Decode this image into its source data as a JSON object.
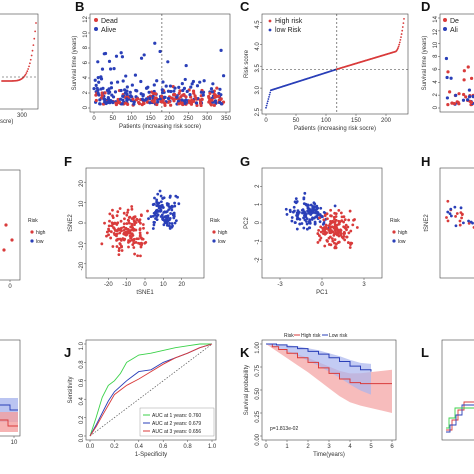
{
  "panels": {
    "A": {
      "label": "A",
      "xticks": [
        "300"
      ],
      "xlabel_partial": "scre)"
    },
    "B": {
      "label": "B",
      "ylabel": "Survival time (years)",
      "xlabel": "Patients (increasing risk socre)",
      "legend": [
        "Dead",
        "Alive"
      ],
      "xticks": [
        "0",
        "50",
        "100",
        "150",
        "200",
        "250",
        "300",
        "350"
      ],
      "yticks": [
        "0",
        "2",
        "4",
        "6",
        "8",
        "10",
        "12"
      ]
    },
    "C": {
      "label": "C",
      "ylabel": "Risk score",
      "xlabel": "Patients (increasing risk socre)",
      "legend": [
        "High risk",
        "low Risk"
      ],
      "xticks": [
        "0",
        "50",
        "100",
        "150",
        "200"
      ],
      "yticks": [
        "2.5",
        "3.0",
        "3.5",
        "4.0",
        "4.5"
      ]
    },
    "D": {
      "label": "D",
      "ylabel": "Survival time (years)",
      "legend": [
        "De",
        "Ali"
      ],
      "yticks": [
        "0",
        "2",
        "4",
        "6",
        "8",
        "10",
        "12",
        "14"
      ]
    },
    "E": {
      "legend_title": "Risk",
      "legend": [
        "high",
        "low"
      ],
      "xticks": [
        "0"
      ]
    },
    "F": {
      "label": "F",
      "xlabel": "tSNE1",
      "ylabel": "tSNE2",
      "xticks": [
        "-20",
        "-10",
        "0",
        "10",
        "20"
      ],
      "yticks": [
        "-20",
        "-10",
        "0",
        "10",
        "20"
      ],
      "legend_title": "Risk",
      "legend": [
        "high",
        "low"
      ]
    },
    "G": {
      "label": "G",
      "xlabel": "PC1",
      "ylabel": "PC2",
      "xticks": [
        "-3",
        "0",
        "3"
      ],
      "yticks": [
        "-2",
        "-1",
        "0",
        "1",
        "2"
      ],
      "legend_title": "Risk",
      "legend": [
        "high",
        "low"
      ]
    },
    "H": {
      "label": "H",
      "ylabel": "tSNE2"
    },
    "I": {
      "xticks": [
        "10"
      ]
    },
    "J": {
      "label": "J",
      "xlabel": "1-Specificity",
      "ylabel": "Sensitivity",
      "xticks": [
        "0.0",
        "0.2",
        "0.4",
        "0.6",
        "0.8",
        "1.0"
      ],
      "yticks": [
        "0.0",
        "0.2",
        "0.4",
        "0.6",
        "0.8",
        "1.0"
      ],
      "legend": [
        "AUC at 1 years: 0.760",
        "AUC at 2 years: 0.679",
        "AUC at 3 years: 0.656"
      ]
    },
    "K": {
      "label": "K",
      "xlabel": "Time(years)",
      "ylabel": "Survival probability",
      "xticks": [
        "0",
        "1",
        "2",
        "3",
        "4",
        "5",
        "6"
      ],
      "yticks": [
        "0.00",
        "0.25",
        "0.50",
        "0.75",
        "1.00"
      ],
      "legend": [
        "Risk",
        "High risk",
        "Low risk"
      ],
      "pvalue": "p=1.813e-02"
    },
    "L": {
      "label": "L"
    }
  },
  "colors": {
    "red": "#d93b3b",
    "blue": "#2a3fb8",
    "green": "#3bd24a",
    "grey": "#777777",
    "pink_ci": "#f4a0a0",
    "blue_ci": "#a9b5ee"
  },
  "chart_data": [
    {
      "panel": "B",
      "type": "scatter",
      "xlim": [
        0,
        350
      ],
      "ylim": [
        0,
        12
      ],
      "series": [
        {
          "name": "Dead",
          "color": "red"
        },
        {
          "name": "Alive",
          "color": "blue"
        }
      ]
    },
    {
      "panel": "C",
      "type": "scatter",
      "xlim": [
        0,
        230
      ],
      "ylim": [
        2.5,
        4.6
      ],
      "series": [
        {
          "name": "low Risk"
        },
        {
          "name": "High risk"
        }
      ],
      "cutoff_x": 118,
      "cutoff_y": 3.43
    },
    {
      "panel": "F",
      "type": "scatter",
      "xlim": [
        -30,
        30
      ],
      "ylim": [
        -25,
        25
      ]
    },
    {
      "panel": "G",
      "type": "scatter",
      "xlim": [
        -4,
        4
      ],
      "ylim": [
        -2.8,
        2.8
      ]
    },
    {
      "panel": "J",
      "type": "line",
      "xlim": [
        0,
        1
      ],
      "ylim": [
        0,
        1
      ],
      "series": [
        {
          "name": "AUC at 1 years: 0.760",
          "color": "green",
          "x": [
            0,
            0.05,
            0.1,
            0.15,
            0.2,
            0.25,
            0.3,
            0.35,
            0.4,
            0.5,
            0.6,
            0.7,
            0.8,
            0.9,
            1.0
          ],
          "y": [
            0,
            0.2,
            0.42,
            0.55,
            0.6,
            0.68,
            0.8,
            0.84,
            0.88,
            0.9,
            0.93,
            0.96,
            0.98,
            1.0,
            1.0
          ]
        },
        {
          "name": "AUC at 2 years: 0.679",
          "color": "blue",
          "x": [
            0,
            0.05,
            0.1,
            0.15,
            0.2,
            0.3,
            0.4,
            0.5,
            0.6,
            0.7,
            0.8,
            0.9,
            1.0
          ],
          "y": [
            0,
            0.12,
            0.25,
            0.38,
            0.48,
            0.6,
            0.7,
            0.72,
            0.8,
            0.85,
            0.9,
            0.96,
            1.0
          ]
        },
        {
          "name": "AUC at 3 years: 0.656",
          "color": "red",
          "x": [
            0,
            0.05,
            0.1,
            0.2,
            0.3,
            0.4,
            0.5,
            0.6,
            0.7,
            0.8,
            0.9,
            1.0
          ],
          "y": [
            0,
            0.1,
            0.22,
            0.45,
            0.55,
            0.62,
            0.7,
            0.78,
            0.85,
            0.9,
            0.96,
            1.0
          ]
        }
      ]
    },
    {
      "panel": "K",
      "type": "line",
      "xlim": [
        0,
        6
      ],
      "ylim": [
        0,
        1
      ],
      "series": [
        {
          "name": "High risk",
          "color": "red",
          "x": [
            0,
            0.3,
            0.6,
            1.0,
            1.5,
            2.0,
            2.5,
            3.0,
            3.5,
            4.0,
            4.5,
            6.0
          ],
          "y": [
            1.0,
            0.97,
            0.94,
            0.9,
            0.85,
            0.8,
            0.74,
            0.68,
            0.62,
            0.58,
            0.57,
            0.57
          ]
        },
        {
          "name": "Low risk",
          "color": "blue",
          "x": [
            0,
            0.5,
            1.0,
            1.5,
            2.0,
            2.5,
            3.0,
            3.5,
            4.0,
            4.5,
            5.0
          ],
          "y": [
            1.0,
            0.99,
            0.97,
            0.95,
            0.92,
            0.89,
            0.85,
            0.81,
            0.76,
            0.72,
            0.7
          ]
        }
      ]
    }
  ]
}
